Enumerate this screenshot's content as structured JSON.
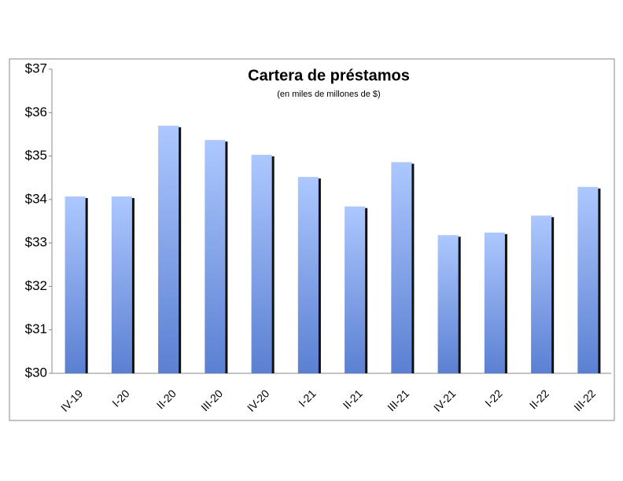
{
  "chart_data": {
    "type": "bar",
    "title": "Cartera de préstamos",
    "subtitle": "(en miles de millones  de $)",
    "categories": [
      "IV-19",
      "I-20",
      "II-20",
      "III-20",
      "IV-20",
      "I-21",
      "II-21",
      "III-21",
      "IV-21",
      "I-22",
      "II-22",
      "III-22"
    ],
    "values": [
      34.07,
      34.07,
      35.7,
      35.37,
      35.03,
      34.52,
      33.84,
      34.86,
      33.18,
      33.24,
      33.63,
      34.29
    ],
    "color": "#7f9fe6",
    "ylim": [
      30,
      37
    ],
    "yticks": [
      {
        "value": 30,
        "label": "$30"
      },
      {
        "value": 31,
        "label": "$31"
      },
      {
        "value": 32,
        "label": "$32"
      },
      {
        "value": 33,
        "label": "$33"
      },
      {
        "value": 34,
        "label": "$34"
      },
      {
        "value": 35,
        "label": "$35"
      },
      {
        "value": 36,
        "label": "$36"
      },
      {
        "value": 37,
        "label": "$37"
      }
    ],
    "grid": false
  }
}
